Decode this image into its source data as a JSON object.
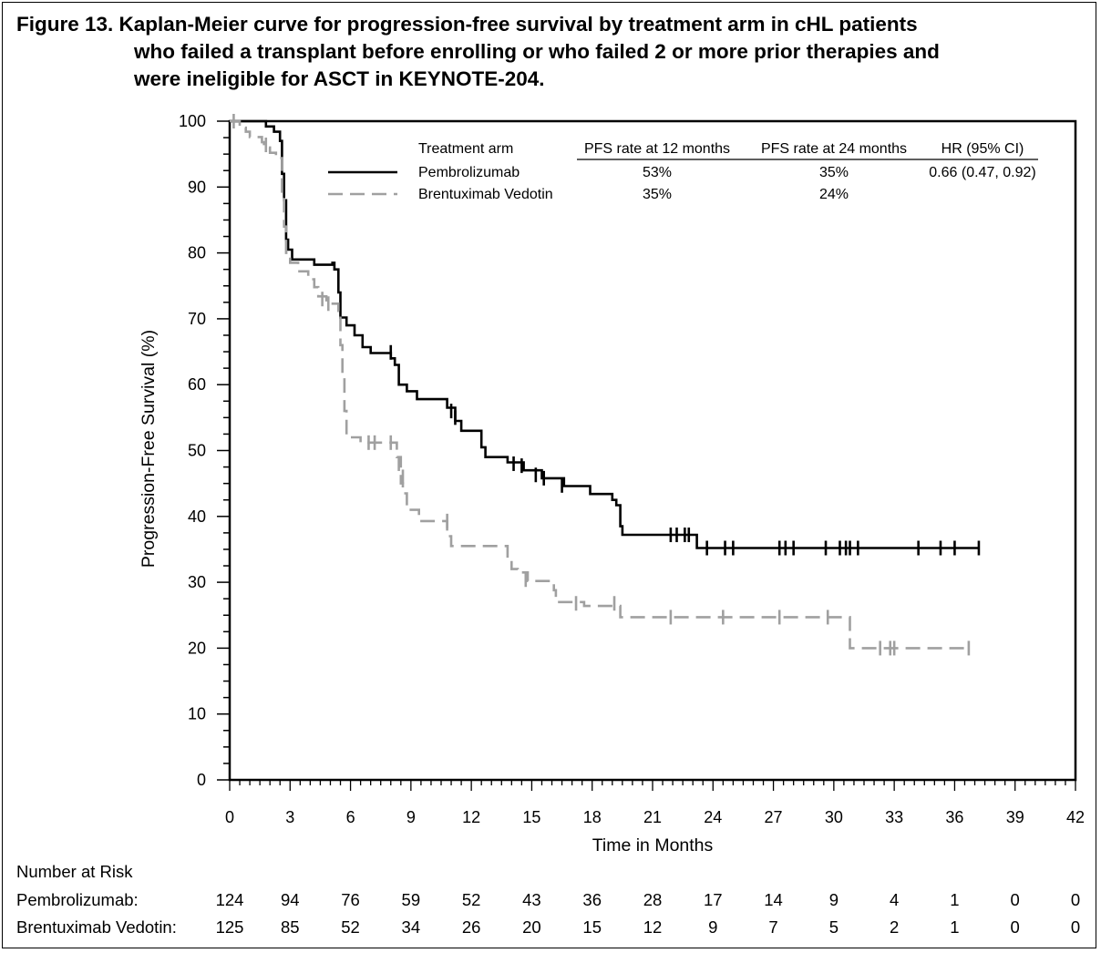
{
  "figure": {
    "title_lines": [
      "Figure 13.  Kaplan-Meier curve for progression-free survival by treatment arm in cHL patients",
      "who failed a transplant before enrolling or who failed 2 or more prior therapies and",
      "were ineligible for ASCT in KEYNOTE-204."
    ]
  },
  "chart_data": {
    "type": "line",
    "subtype": "kaplan-meier-step",
    "xlabel": "Time in Months",
    "ylabel": "Progression-Free Survival (%)",
    "xlim": [
      0,
      42
    ],
    "ylim": [
      0,
      100
    ],
    "xticks": [
      0,
      3,
      6,
      9,
      12,
      15,
      18,
      21,
      24,
      27,
      30,
      33,
      36,
      39,
      42
    ],
    "yticks": [
      0,
      10,
      20,
      30,
      40,
      50,
      60,
      70,
      80,
      90,
      100
    ],
    "grid": false,
    "legend_position": "top-right",
    "legend_table": {
      "headers": [
        "Treatment arm",
        "PFS rate at 12 months",
        "PFS rate at 24 months",
        "HR (95% CI)"
      ],
      "rows": [
        {
          "arm": "Pembrolizumab",
          "pfs12": "53%",
          "pfs24": "35%",
          "hr": "0.66 (0.47, 0.92)"
        },
        {
          "arm": "Brentuximab Vedotin",
          "pfs12": "35%",
          "pfs24": "24%",
          "hr": ""
        }
      ]
    },
    "series": [
      {
        "name": "Pembrolizumab",
        "color": "#000000",
        "style": "solid",
        "steps": [
          [
            0,
            100
          ],
          [
            1.8,
            99.2
          ],
          [
            2.2,
            98.4
          ],
          [
            2.5,
            97
          ],
          [
            2.6,
            92
          ],
          [
            2.7,
            88
          ],
          [
            2.8,
            82
          ],
          [
            2.9,
            80.5
          ],
          [
            3.1,
            79
          ],
          [
            4.2,
            78.2
          ],
          [
            5.1,
            78.5
          ],
          [
            5.2,
            77.5
          ],
          [
            5.4,
            74
          ],
          [
            5.5,
            70.2
          ],
          [
            5.8,
            69
          ],
          [
            6.2,
            67.5
          ],
          [
            6.6,
            65.7
          ],
          [
            7.0,
            64.8
          ],
          [
            8.0,
            64
          ],
          [
            8.2,
            63
          ],
          [
            8.4,
            60
          ],
          [
            8.8,
            59
          ],
          [
            9.3,
            57.8
          ],
          [
            10.8,
            56.5
          ],
          [
            11.2,
            54.5
          ],
          [
            11.5,
            53
          ],
          [
            12.5,
            50.5
          ],
          [
            12.7,
            49
          ],
          [
            13.8,
            48.2
          ],
          [
            14.6,
            47
          ],
          [
            15.5,
            45.8
          ],
          [
            16.6,
            44.6
          ],
          [
            17.9,
            43.4
          ],
          [
            19.0,
            42.5
          ],
          [
            19.2,
            41.7
          ],
          [
            19.4,
            38.5
          ],
          [
            19.5,
            37.2
          ],
          [
            23.2,
            35.2
          ],
          [
            37.2,
            35.2
          ]
        ],
        "censored": [
          [
            8.0,
            64.9
          ],
          [
            11.0,
            56
          ],
          [
            11.2,
            55
          ],
          [
            14.1,
            48
          ],
          [
            14.5,
            47.7
          ],
          [
            15.2,
            46.3
          ],
          [
            15.6,
            45.8
          ],
          [
            16.5,
            44.7
          ],
          [
            21.9,
            37.2
          ],
          [
            22.2,
            37.2
          ],
          [
            22.6,
            37.2
          ],
          [
            22.8,
            37.2
          ],
          [
            23.7,
            35.2
          ],
          [
            24.6,
            35.2
          ],
          [
            25.0,
            35.2
          ],
          [
            27.3,
            35.2
          ],
          [
            27.6,
            35.2
          ],
          [
            28.0,
            35.2
          ],
          [
            29.6,
            35.2
          ],
          [
            30.3,
            35.2
          ],
          [
            30.6,
            35.2
          ],
          [
            30.8,
            35.2
          ],
          [
            31.2,
            35.2
          ],
          [
            34.2,
            35.2
          ],
          [
            35.3,
            35.2
          ],
          [
            36.0,
            35.2
          ],
          [
            37.2,
            35.2
          ]
        ]
      },
      {
        "name": "Brentuximab Vedotin",
        "color": "#a0a0a0",
        "style": "dashed",
        "steps": [
          [
            0,
            100
          ],
          [
            0.5,
            99
          ],
          [
            0.8,
            98.4
          ],
          [
            1.0,
            97.6
          ],
          [
            1.6,
            96.8
          ],
          [
            1.7,
            96
          ],
          [
            2.0,
            95.2
          ],
          [
            2.3,
            94.4
          ],
          [
            2.6,
            89
          ],
          [
            2.7,
            84
          ],
          [
            2.8,
            80
          ],
          [
            3.0,
            78.5
          ],
          [
            3.4,
            77.2
          ],
          [
            3.9,
            76
          ],
          [
            4.2,
            74.8
          ],
          [
            4.4,
            73.4
          ],
          [
            4.8,
            72.3
          ],
          [
            5.4,
            71.2
          ],
          [
            5.5,
            66
          ],
          [
            5.6,
            61
          ],
          [
            5.7,
            56
          ],
          [
            5.8,
            52
          ],
          [
            6.5,
            51.2
          ],
          [
            8.3,
            49
          ],
          [
            8.5,
            45
          ],
          [
            8.6,
            43.5
          ],
          [
            8.8,
            41
          ],
          [
            9.4,
            39.3
          ],
          [
            10.8,
            37
          ],
          [
            11.0,
            35.5
          ],
          [
            13.8,
            33.3
          ],
          [
            14.0,
            32
          ],
          [
            14.3,
            31.5
          ],
          [
            14.8,
            30.2
          ],
          [
            16.1,
            28.8
          ],
          [
            16.2,
            27
          ],
          [
            17.6,
            26.4
          ],
          [
            19.4,
            24.7
          ],
          [
            30.8,
            20
          ],
          [
            36.7,
            20
          ]
        ],
        "censored": [
          [
            0.2,
            100
          ],
          [
            1.8,
            96.4
          ],
          [
            4.6,
            73
          ],
          [
            4.9,
            72.3
          ],
          [
            6.9,
            51.2
          ],
          [
            7.2,
            51.2
          ],
          [
            8.0,
            51.2
          ],
          [
            8.4,
            48
          ],
          [
            8.6,
            46
          ],
          [
            10.8,
            39.3
          ],
          [
            14.7,
            30.4
          ],
          [
            17.2,
            26.8
          ],
          [
            19.1,
            26.8
          ],
          [
            21.9,
            24.7
          ],
          [
            24.5,
            24.7
          ],
          [
            27.3,
            24.7
          ],
          [
            29.7,
            24.7
          ],
          [
            32.3,
            20
          ],
          [
            32.8,
            20
          ],
          [
            33.0,
            20
          ],
          [
            36.7,
            20
          ]
        ]
      }
    ],
    "risk_table": {
      "title": "Number at Risk",
      "times": [
        0,
        3,
        6,
        9,
        12,
        15,
        18,
        21,
        24,
        27,
        30,
        33,
        36,
        39,
        42
      ],
      "rows": [
        {
          "label": "Pembrolizumab:",
          "counts": [
            124,
            94,
            76,
            59,
            52,
            43,
            36,
            28,
            17,
            14,
            9,
            4,
            1,
            0,
            0
          ]
        },
        {
          "label": "Brentuximab Vedotin:",
          "counts": [
            125,
            85,
            52,
            34,
            26,
            20,
            15,
            12,
            9,
            7,
            5,
            2,
            1,
            0,
            0
          ]
        }
      ]
    }
  }
}
